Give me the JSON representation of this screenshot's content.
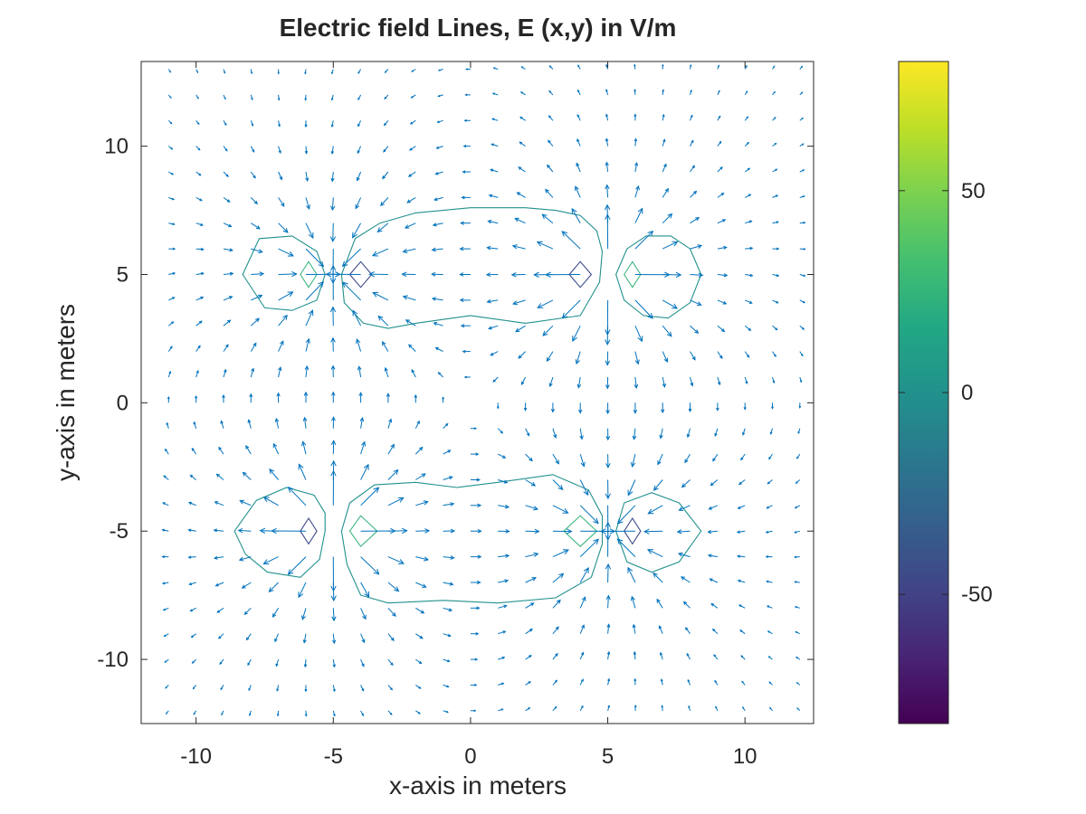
{
  "chart_data": {
    "type": "quiver",
    "title": "Electric field Lines, E (x,y) in V/m",
    "xlabel": "x-axis in meters",
    "ylabel": "y-axis in meters",
    "xlim": [
      -12,
      12.5
    ],
    "ylim": [
      -12.5,
      13.3
    ],
    "xticks": [
      -10,
      -5,
      0,
      5,
      10
    ],
    "yticks": [
      -10,
      -5,
      0,
      5,
      10
    ],
    "grid": false,
    "charges": [
      {
        "x": -5,
        "y": 5,
        "sign": -1
      },
      {
        "x": 5,
        "y": 5,
        "sign": 1
      },
      {
        "x": -5,
        "y": -5,
        "sign": 1
      },
      {
        "x": 5,
        "y": -5,
        "sign": -1
      }
    ],
    "grid_spacing": 1,
    "arrow_color": "#0072bd",
    "colorbar": {
      "ticks": [
        50,
        0,
        -50
      ],
      "range": [
        -82,
        82
      ],
      "colormap": "viridis"
    },
    "contours": [
      {
        "level": 40,
        "color": "#41b782",
        "points": [
          [
            -6.2,
            5
          ],
          [
            -5.9,
            5.5
          ],
          [
            -5.6,
            5
          ],
          [
            -5.9,
            4.5
          ]
        ]
      },
      {
        "level": -40,
        "color": "#3e4989",
        "points": [
          [
            -4.4,
            5
          ],
          [
            -4.0,
            5.5
          ],
          [
            -3.6,
            5
          ],
          [
            -4.0,
            4.5
          ]
        ]
      },
      {
        "level": -40,
        "color": "#3e4989",
        "points": [
          [
            3.6,
            5
          ],
          [
            4.0,
            5.5
          ],
          [
            4.4,
            5
          ],
          [
            4.0,
            4.5
          ]
        ]
      },
      {
        "level": 40,
        "color": "#41b782",
        "points": [
          [
            5.6,
            5
          ],
          [
            5.9,
            5.5
          ],
          [
            6.2,
            5
          ],
          [
            5.9,
            4.5
          ]
        ]
      },
      {
        "level": -40,
        "color": "#3e4989",
        "points": [
          [
            -6.2,
            -5
          ],
          [
            -5.9,
            -4.5
          ],
          [
            -5.6,
            -5
          ],
          [
            -5.9,
            -5.5
          ]
        ]
      },
      {
        "level": 40,
        "color": "#41b782",
        "points": [
          [
            -4.4,
            -5
          ],
          [
            -4.0,
            -4.4
          ],
          [
            -3.4,
            -5
          ],
          [
            -4.0,
            -5.6
          ]
        ]
      },
      {
        "level": 40,
        "color": "#41b782",
        "points": [
          [
            3.4,
            -5
          ],
          [
            4.0,
            -4.4
          ],
          [
            4.6,
            -5
          ],
          [
            4.0,
            -5.6
          ]
        ]
      },
      {
        "level": -40,
        "color": "#3e4989",
        "points": [
          [
            5.6,
            -5
          ],
          [
            5.9,
            -4.5
          ],
          [
            6.2,
            -5
          ],
          [
            5.9,
            -5.5
          ]
        ]
      },
      {
        "level": 8,
        "color": "#21918c",
        "points": [
          [
            -8.3,
            5
          ],
          [
            -7.7,
            6.4
          ],
          [
            -6.5,
            6.5
          ],
          [
            -5.6,
            5.9
          ],
          [
            -5.3,
            5
          ],
          [
            -5.6,
            4.0
          ],
          [
            -6.5,
            3.6
          ],
          [
            -7.5,
            3.7
          ]
        ]
      },
      {
        "level": -8,
        "color": "#21918c",
        "points": [
          [
            -4.7,
            5
          ],
          [
            -4.2,
            6.4
          ],
          [
            -3.3,
            7.0
          ],
          [
            -2.0,
            7.4
          ],
          [
            0,
            7.6
          ],
          [
            2,
            7.6
          ],
          [
            3.1,
            7.5
          ],
          [
            4.0,
            7.3
          ],
          [
            4.6,
            6.7
          ],
          [
            4.8,
            5.9
          ],
          [
            4.7,
            4.7
          ],
          [
            4.0,
            3.4
          ],
          [
            2.0,
            3.1
          ],
          [
            0,
            3.4
          ],
          [
            -2,
            3.1
          ],
          [
            -3.0,
            2.9
          ],
          [
            -3.9,
            3.1
          ],
          [
            -4.6,
            3.9
          ]
        ]
      },
      {
        "level": 8,
        "color": "#21918c",
        "points": [
          [
            5.3,
            5
          ],
          [
            5.7,
            6.0
          ],
          [
            6.4,
            6.5
          ],
          [
            7.3,
            6.5
          ],
          [
            8.0,
            6.0
          ],
          [
            8.4,
            5.0
          ],
          [
            8.0,
            3.9
          ],
          [
            7.2,
            3.3
          ],
          [
            6.3,
            3.4
          ],
          [
            5.6,
            4.0
          ]
        ]
      },
      {
        "level": -8,
        "color": "#21918c",
        "points": [
          [
            -8.6,
            -5
          ],
          [
            -7.8,
            -3.8
          ],
          [
            -6.7,
            -3.3
          ],
          [
            -5.7,
            -3.6
          ],
          [
            -5.3,
            -4.3
          ],
          [
            -5.3,
            -5.0
          ],
          [
            -5.5,
            -6.1
          ],
          [
            -6.2,
            -6.8
          ],
          [
            -7.4,
            -6.6
          ],
          [
            -8.2,
            -5.9
          ]
        ]
      },
      {
        "level": 8,
        "color": "#21918c",
        "points": [
          [
            -4.7,
            -5
          ],
          [
            -4.4,
            -3.9
          ],
          [
            -3.5,
            -3.2
          ],
          [
            -2,
            -3.1
          ],
          [
            -0.5,
            -3.3
          ],
          [
            1,
            -3.1
          ],
          [
            3,
            -2.8
          ],
          [
            4.3,
            -3.4
          ],
          [
            4.8,
            -4.4
          ],
          [
            4.8,
            -5.5
          ],
          [
            4.4,
            -6.8
          ],
          [
            3.1,
            -7.6
          ],
          [
            1,
            -7.8
          ],
          [
            -1,
            -7.7
          ],
          [
            -3,
            -7.8
          ],
          [
            -4.0,
            -7.5
          ],
          [
            -4.5,
            -6.3
          ]
        ]
      },
      {
        "level": -8,
        "color": "#21918c",
        "points": [
          [
            5.3,
            -5
          ],
          [
            5.6,
            -3.9
          ],
          [
            6.6,
            -3.5
          ],
          [
            7.6,
            -3.9
          ],
          [
            8.4,
            -5.0
          ],
          [
            7.6,
            -6.2
          ],
          [
            6.6,
            -6.6
          ],
          [
            5.7,
            -6.2
          ]
        ]
      }
    ]
  }
}
